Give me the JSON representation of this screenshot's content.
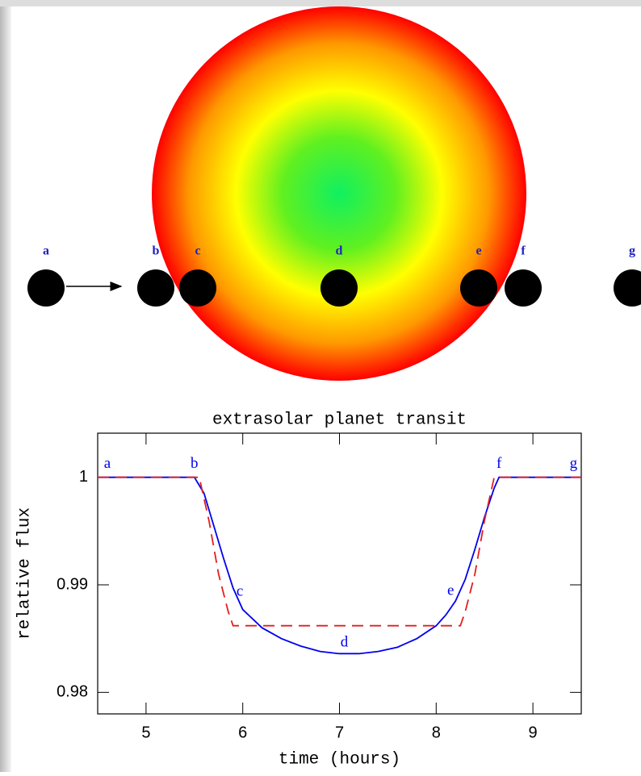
{
  "diagram": {
    "labels": [
      "a",
      "b",
      "c",
      "d",
      "e",
      "f",
      "g"
    ]
  },
  "chart_data": {
    "type": "line",
    "title": "extrasolar planet transit",
    "xlabel": "time (hours)",
    "ylabel": "relative flux",
    "xlim": [
      4.5,
      9.5
    ],
    "xticks": [
      5,
      6,
      7,
      8,
      9
    ],
    "ylim": [
      0.978,
      1.0041
    ],
    "yticks": [
      0.98,
      0.99,
      1
    ],
    "series": [
      {
        "color": "#0000ee",
        "dash": false,
        "x": [
          4.5,
          5.5,
          5.6,
          5.7,
          5.8,
          5.9,
          6.0,
          6.2,
          6.4,
          6.6,
          6.8,
          7.0,
          7.2,
          7.4,
          7.6,
          7.8,
          8.0,
          8.1,
          8.2,
          8.3,
          8.4,
          8.5,
          8.6,
          8.65,
          9.5
        ],
        "values": [
          1,
          1,
          0.9985,
          0.9955,
          0.9925,
          0.9897,
          0.9877,
          0.986,
          0.985,
          0.9843,
          0.9838,
          0.9836,
          0.9836,
          0.9838,
          0.9842,
          0.985,
          0.9862,
          0.9872,
          0.9885,
          0.9905,
          0.9933,
          0.9963,
          0.999,
          1,
          1
        ]
      },
      {
        "color": "#e02020",
        "dash": true,
        "x": [
          4.5,
          5.55,
          5.65,
          5.75,
          5.85,
          5.9,
          8.25,
          8.3,
          8.4,
          8.5,
          8.6,
          9.5
        ],
        "values": [
          1,
          1,
          0.996,
          0.991,
          0.9875,
          0.9862,
          0.9862,
          0.9875,
          0.991,
          0.996,
          1,
          1
        ]
      }
    ],
    "annotations": [
      {
        "text": "a",
        "x": 4.6,
        "y": 1.0012
      },
      {
        "text": "b",
        "x": 5.5,
        "y": 1.0012
      },
      {
        "text": "c",
        "x": 5.97,
        "y": 0.9893
      },
      {
        "text": "d",
        "x": 7.05,
        "y": 0.9846
      },
      {
        "text": "e",
        "x": 8.15,
        "y": 0.9894
      },
      {
        "text": "f",
        "x": 8.65,
        "y": 1.0012
      },
      {
        "text": "g",
        "x": 9.42,
        "y": 1.0012
      }
    ]
  }
}
